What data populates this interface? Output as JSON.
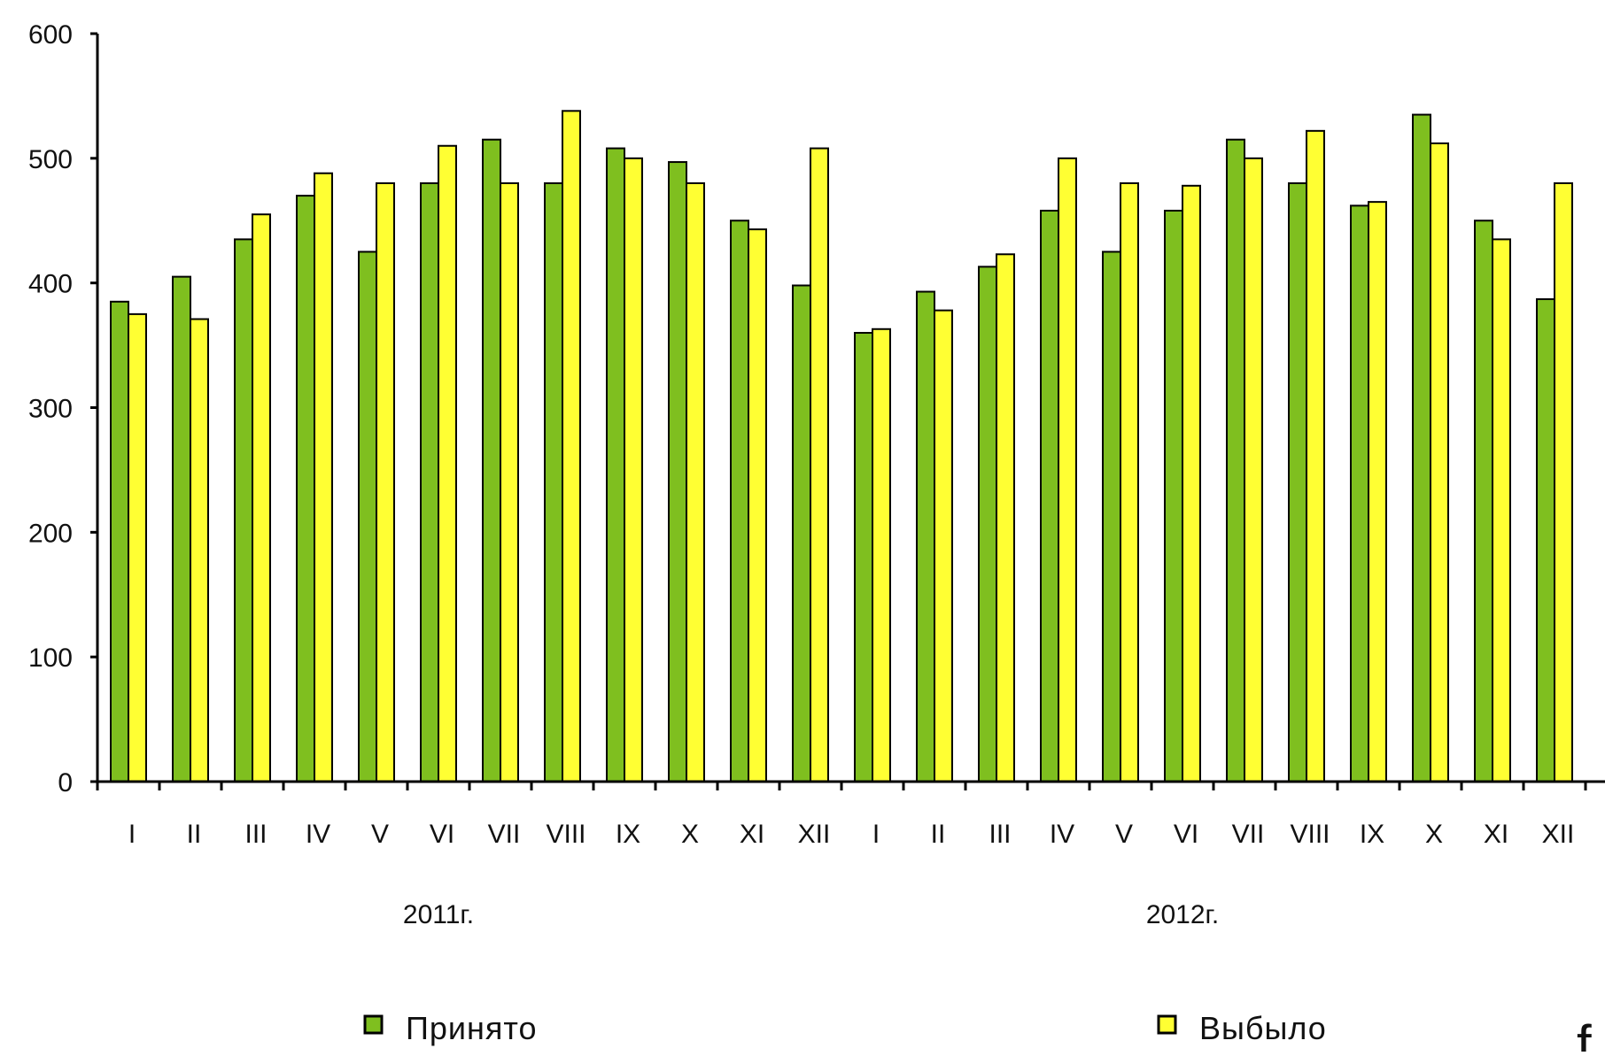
{
  "chart_data": {
    "type": "bar",
    "title": "",
    "xlabel": "",
    "ylabel": "",
    "ylim": [
      0,
      600
    ],
    "yticks": [
      "0",
      "100",
      "200",
      "300",
      "400",
      "500",
      "600"
    ],
    "grid": false,
    "legend_position": "bottom",
    "categories": [
      "I",
      "II",
      "III",
      "IV",
      "V",
      "VI",
      "VII",
      "VIII",
      "IX",
      "X",
      "XI",
      "XII",
      "I",
      "II",
      "III",
      "IV",
      "V",
      "VI",
      "VII",
      "VIII",
      "IX",
      "X",
      "XI",
      "XII"
    ],
    "groups": [
      {
        "label": "2011г.",
        "start": 0,
        "end": 11
      },
      {
        "label": "2012г.",
        "start": 12,
        "end": 23
      }
    ],
    "series": [
      {
        "name": "Принято",
        "color": "#7fbf1f",
        "values": [
          385,
          405,
          435,
          470,
          425,
          480,
          515,
          480,
          508,
          497,
          450,
          398,
          360,
          393,
          413,
          458,
          425,
          458,
          515,
          480,
          462,
          535,
          450,
          387
        ]
      },
      {
        "name": "Выбыло",
        "color": "#ffff33",
        "values": [
          375,
          371,
          455,
          488,
          480,
          510,
          480,
          538,
          500,
          480,
          443,
          508,
          363,
          378,
          423,
          500,
          480,
          478,
          500,
          522,
          465,
          512,
          435,
          480
        ]
      }
    ]
  },
  "page": {
    "corner_mark": "f"
  }
}
